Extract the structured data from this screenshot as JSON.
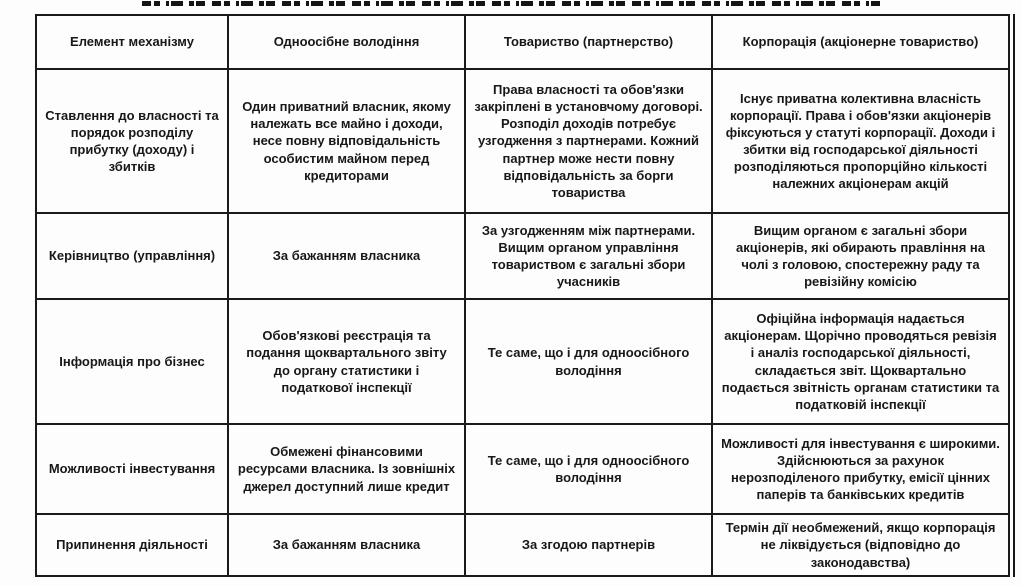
{
  "table": {
    "columns": [
      "Елемент механізму",
      "Одноосібне володіння",
      "Товариство (партнерство)",
      "Корпорація (акціонерне товариство)"
    ],
    "rows": [
      {
        "cells": [
          "Ставлення до власності та порядок розподілу прибутку (доходу) і збитків",
          "Один приватний власник, якому належать все майно і доходи, несе повну відповідальність особистим майном перед кредиторами",
          "Права власності та обов'язки закріплені в установчому договорі. Розподіл доходів потребує узгодження з партнерами. Кожний партнер може нести повну відповідальність за борги товариства",
          "Існує приватна колективна власність корпорації. Права і обов'язки акціонерів фіксуються у статуті корпорації. Доходи і збитки від господарської діяльності розподіляються пропорційно кількості належних акціонерам акцій"
        ]
      },
      {
        "cells": [
          "Керівництво (управління)",
          "За бажанням власника",
          "За узгодженням між партнерами. Вищим органом управління товариством є загальні збори учасників",
          "Вищим органом є загальні збори акціонерів, які обирають правління на чолі з головою, спостережну раду та ревізійну комісію"
        ]
      },
      {
        "cells": [
          "Інформація про бізнес",
          "Обов'язкові реєстрація та подання щоквартального звіту до органу статистики і податкової інспекції",
          "Те саме, що і для одноосібного володіння",
          "Офіційна інформація надається акціонерам. Щорічно проводяться ревізія і аналіз господарської діяльності, складається звіт. Щоквартально подається звітність органам статистики та податковій інспекції"
        ]
      },
      {
        "cells": [
          "Можливості інвестування",
          "Обмежені фінансовими ресурсами власника. Із зовнішніх джерел доступний лише кредит",
          "Те саме, що і для одноосібного володіння",
          "Можливості для інвестування є широкими. Здійснюються за рахунок нерозподіленого прибутку, емісії цінних паперів та банківських кредитів"
        ]
      },
      {
        "cells": [
          "Припинення діяльності",
          "За бажанням власника",
          "За згодою партнерів",
          "Термін дії необмежений, якщо корпорація не ліквідується (відповідно до законодавства)"
        ]
      }
    ]
  }
}
